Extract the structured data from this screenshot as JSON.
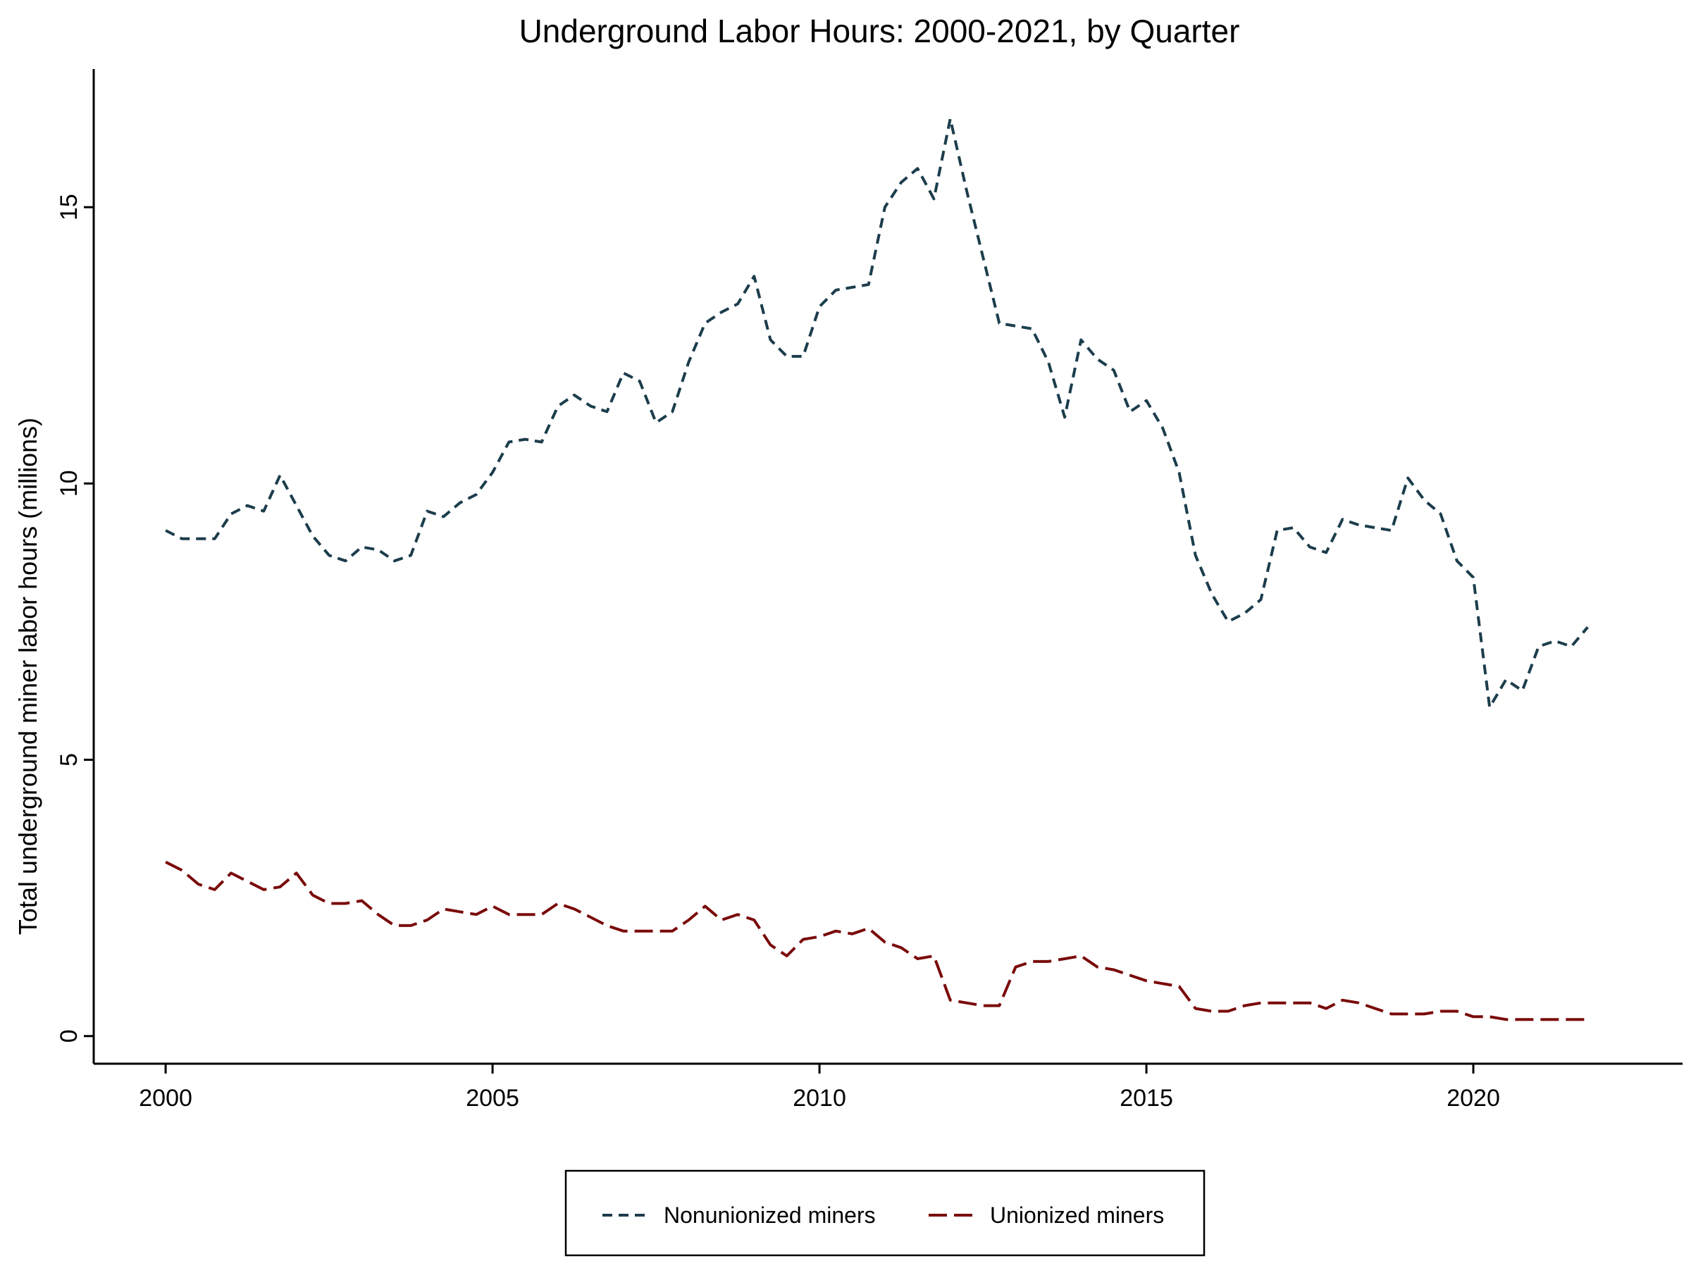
{
  "chart_data": {
    "type": "line",
    "title": "Underground Labor Hours: 2000-2021, by Quarter",
    "xlabel": "",
    "ylabel": "Total underground miner labor hours (millions)",
    "xlim": [
      1998.9,
      2023.2
    ],
    "ylim": [
      -0.5,
      17.5
    ],
    "x_ticks": [
      2000,
      2005,
      2010,
      2015,
      2020
    ],
    "y_ticks": [
      0,
      5,
      10,
      15
    ],
    "grid": false,
    "legend": "bottom",
    "series": [
      {
        "name": "Nonunionized miners",
        "color": "#1c3d4c",
        "dash": "dash",
        "x": [
          2000,
          2000.25,
          2000.5,
          2000.75,
          2001,
          2001.25,
          2001.5,
          2001.75,
          2002,
          2002.25,
          2002.5,
          2002.75,
          2003,
          2003.25,
          2003.5,
          2003.75,
          2004,
          2004.25,
          2004.5,
          2004.75,
          2005,
          2005.25,
          2005.5,
          2005.75,
          2006,
          2006.25,
          2006.5,
          2006.75,
          2007,
          2007.25,
          2007.5,
          2007.75,
          2008,
          2008.25,
          2008.5,
          2008.75,
          2009,
          2009.25,
          2009.5,
          2009.75,
          2010,
          2010.25,
          2010.5,
          2010.75,
          2011,
          2011.25,
          2011.5,
          2011.75,
          2012,
          2012.25,
          2012.5,
          2012.75,
          2013,
          2013.25,
          2013.5,
          2013.75,
          2014,
          2014.25,
          2014.5,
          2014.75,
          2015,
          2015.25,
          2015.5,
          2015.75,
          2016,
          2016.25,
          2016.5,
          2016.75,
          2017,
          2017.25,
          2017.5,
          2017.75,
          2018,
          2018.25,
          2018.5,
          2018.75,
          2019,
          2019.25,
          2019.5,
          2019.75,
          2020,
          2020.25,
          2020.5,
          2020.75,
          2021,
          2021.25,
          2021.5,
          2021.75
        ],
        "values": [
          9.15,
          9.0,
          9.0,
          9.0,
          9.45,
          9.6,
          9.5,
          10.15,
          9.6,
          9.05,
          8.7,
          8.6,
          8.85,
          8.8,
          8.6,
          8.7,
          9.5,
          9.4,
          9.65,
          9.8,
          10.2,
          10.75,
          10.8,
          10.75,
          11.4,
          11.6,
          11.4,
          11.3,
          12.0,
          11.85,
          11.1,
          11.3,
          12.2,
          12.9,
          13.1,
          13.25,
          13.75,
          12.6,
          12.3,
          12.3,
          13.2,
          13.5,
          13.55,
          13.6,
          15.0,
          15.45,
          15.7,
          15.15,
          16.6,
          15.3,
          14.1,
          12.9,
          12.85,
          12.8,
          12.2,
          11.2,
          12.6,
          12.25,
          12.05,
          11.3,
          11.5,
          11.0,
          10.2,
          8.7,
          8.0,
          7.5,
          7.65,
          7.9,
          9.15,
          9.2,
          8.85,
          8.75,
          9.35,
          9.25,
          9.2,
          9.15,
          10.1,
          9.7,
          9.45,
          8.6,
          8.3,
          5.95,
          6.45,
          6.25,
          7.05,
          7.15,
          7.05,
          7.4
        ]
      },
      {
        "name": "Unionized miners",
        "color": "#7a0a0a",
        "dash": "longdash",
        "x": [
          2000,
          2000.25,
          2000.5,
          2000.75,
          2001,
          2001.25,
          2001.5,
          2001.75,
          2002,
          2002.25,
          2002.5,
          2002.75,
          2003,
          2003.25,
          2003.5,
          2003.75,
          2004,
          2004.25,
          2004.5,
          2004.75,
          2005,
          2005.25,
          2005.5,
          2005.75,
          2006,
          2006.25,
          2006.5,
          2006.75,
          2007,
          2007.25,
          2007.5,
          2007.75,
          2008,
          2008.25,
          2008.5,
          2008.75,
          2009,
          2009.25,
          2009.5,
          2009.75,
          2010,
          2010.25,
          2010.5,
          2010.75,
          2011,
          2011.25,
          2011.5,
          2011.75,
          2012,
          2012.25,
          2012.5,
          2012.75,
          2013,
          2013.25,
          2013.5,
          2013.75,
          2014,
          2014.25,
          2014.5,
          2014.75,
          2015,
          2015.25,
          2015.5,
          2015.75,
          2016,
          2016.25,
          2016.5,
          2016.75,
          2017,
          2017.25,
          2017.5,
          2017.75,
          2018,
          2018.25,
          2018.5,
          2018.75,
          2019,
          2019.25,
          2019.5,
          2019.75,
          2020,
          2020.25,
          2020.5,
          2020.75,
          2021,
          2021.25,
          2021.5,
          2021.75
        ],
        "values": [
          3.15,
          3.0,
          2.75,
          2.65,
          2.95,
          2.8,
          2.65,
          2.7,
          2.95,
          2.55,
          2.4,
          2.4,
          2.45,
          2.2,
          2.0,
          2.0,
          2.1,
          2.3,
          2.25,
          2.2,
          2.35,
          2.2,
          2.2,
          2.2,
          2.4,
          2.3,
          2.15,
          2.0,
          1.9,
          1.9,
          1.9,
          1.9,
          2.1,
          2.35,
          2.1,
          2.2,
          2.1,
          1.65,
          1.45,
          1.75,
          1.8,
          1.9,
          1.85,
          1.95,
          1.7,
          1.6,
          1.4,
          1.45,
          0.65,
          0.6,
          0.55,
          0.55,
          1.25,
          1.35,
          1.35,
          1.4,
          1.45,
          1.25,
          1.2,
          1.1,
          1.0,
          0.95,
          0.9,
          0.5,
          0.45,
          0.45,
          0.55,
          0.6,
          0.6,
          0.6,
          0.6,
          0.5,
          0.65,
          0.6,
          0.5,
          0.4,
          0.4,
          0.4,
          0.45,
          0.45,
          0.35,
          0.35,
          0.3,
          0.3,
          0.3,
          0.3,
          0.3,
          0.3
        ]
      }
    ]
  }
}
